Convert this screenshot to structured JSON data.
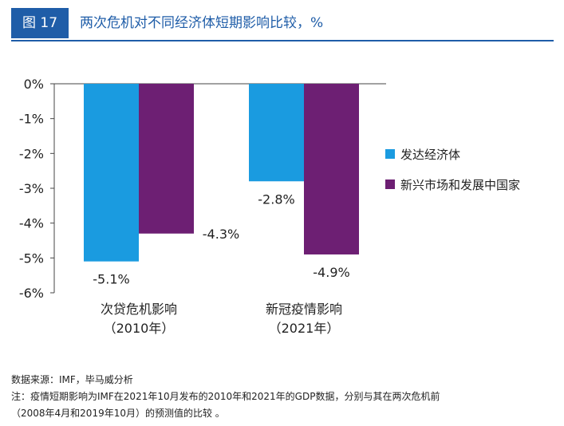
{
  "header": {
    "figure_label": "图 17",
    "title": "两次危机对不同经济体短期影响比较，%",
    "accent_color": "#1f5da8"
  },
  "chart_data": {
    "type": "bar",
    "categories": [
      {
        "line1": "次贷危机影响",
        "line2": "（2010年）"
      },
      {
        "line1": "新冠疫情影响",
        "line2": "（2021年）"
      }
    ],
    "series": [
      {
        "name": "发达经济体",
        "color": "#1a9be0",
        "values": [
          -5.1,
          -2.8
        ],
        "labels": [
          "-5.1%",
          "-2.8%"
        ]
      },
      {
        "name": "新兴市场和发展中国家",
        "color": "#6d1f73",
        "values": [
          -4.3,
          -4.9
        ],
        "labels": [
          "-4.3%",
          "-4.9%"
        ]
      }
    ],
    "ylim": [
      -6,
      0
    ],
    "yticks": [
      0,
      -1,
      -2,
      -3,
      -4,
      -5,
      -6
    ],
    "ytick_labels": [
      "0%",
      "-1%",
      "-2%",
      "-3%",
      "-4%",
      "-5%",
      "-6%"
    ],
    "legend_position": "right",
    "grid": false
  },
  "notes": {
    "source": "数据来源：IMF，毕马威分析",
    "note_line1": "注：疫情短期影响为IMF在2021年10月发布的2010年和2021年的GDP数据，分别与其在两次危机前",
    "note_line2": "（2008年4月和2019年10月）的预测值的比较 。"
  }
}
